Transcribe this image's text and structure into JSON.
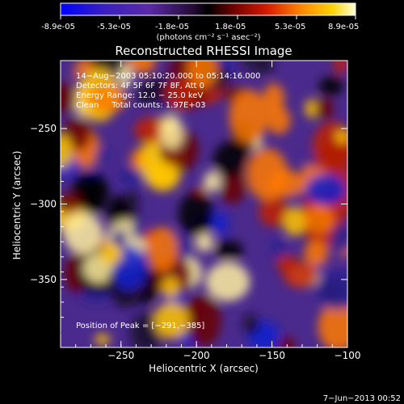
{
  "colorbar": {
    "ticks": [
      "-8.9e-05",
      "-5.3e-05",
      "-1.8e-05",
      "1.8e-05",
      "5.3e-05",
      "8.9e-05"
    ],
    "unit_label": "(photons cm⁻² s⁻¹ asec⁻²)",
    "range": [
      -8.9e-05,
      8.9e-05
    ]
  },
  "chart_data": {
    "type": "heatmap",
    "title": "Reconstructed RHESSI Image",
    "xlabel": "Heliocentric X (arcsec)",
    "ylabel": "Heliocentric Y (arcsec)",
    "xlim": [
      -290,
      -100
    ],
    "ylim": [
      -395,
      -205
    ],
    "x_ticks": [
      {
        "value": -250,
        "label": "−250"
      },
      {
        "value": -200,
        "label": "−200"
      },
      {
        "value": -150,
        "label": "−150"
      },
      {
        "value": -100,
        "label": "−100"
      }
    ],
    "y_ticks": [
      {
        "value": -250,
        "label": "−250"
      },
      {
        "value": -300,
        "label": "−300"
      },
      {
        "value": -350,
        "label": "−350"
      }
    ],
    "annotations": [
      "14−Aug−2003 05:10:20.000 to 05:14:16.000",
      "Detectors: 4F 5F 6F 7F 8F, Att 0",
      "Energy Range: 12.0 − 25.0 keV",
      "Clean     Total counts: 1.97E+03"
    ],
    "peak_label": "Position of Peak = [−291,−385]",
    "peak": {
      "x": -291,
      "y": -385
    }
  },
  "footer": {
    "timestamp": "7−Jun−2013 00:52"
  }
}
